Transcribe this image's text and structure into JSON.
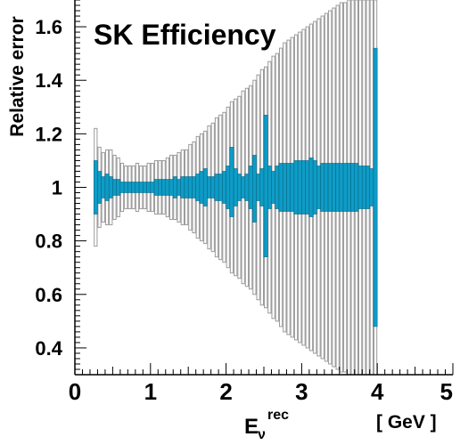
{
  "chart_data": {
    "type": "bar",
    "title": "SK Efficiency",
    "ylabel": "Relative error",
    "xlabel_main": "E",
    "xlabel_sub": "ν",
    "xlabel_sup": "rec",
    "xunit": "[ GeV ]",
    "xlim": [
      0,
      5
    ],
    "ylim": [
      0.3,
      1.7
    ],
    "x_ticks": [
      0,
      1,
      2,
      3,
      4,
      5
    ],
    "x_tick_labels": [
      "0",
      "1",
      "2",
      "3",
      "4",
      "5"
    ],
    "y_ticks": [
      0.4,
      0.6,
      0.8,
      1.0,
      1.2,
      1.4,
      1.6
    ],
    "y_tick_labels": [
      "0.4",
      "0.6",
      "0.8",
      "1",
      "1.2",
      "1.4",
      "1.6"
    ],
    "bin_width": 0.05,
    "x_start": 0.25,
    "colors": {
      "filled": "#0e9cc6",
      "filled_edge": "#08607e",
      "outline": "#9a9a9a"
    },
    "series": [
      {
        "name": "",
        "style": "outline",
        "lower": [
          0.78,
          0.85,
          0.87,
          0.86,
          0.86,
          0.88,
          0.89,
          0.91,
          0.92,
          0.92,
          0.92,
          0.91,
          0.92,
          0.92,
          0.91,
          0.91,
          0.9,
          0.9,
          0.9,
          0.89,
          0.88,
          0.88,
          0.87,
          0.86,
          0.86,
          0.84,
          0.83,
          0.81,
          0.8,
          0.79,
          0.77,
          0.76,
          0.74,
          0.73,
          0.72,
          0.7,
          0.68,
          0.67,
          0.66,
          0.64,
          0.63,
          0.62,
          0.6,
          0.58,
          0.56,
          0.55,
          0.53,
          0.51,
          0.5,
          0.48,
          0.46,
          0.45,
          0.44,
          0.43,
          0.42,
          0.41,
          0.4,
          0.39,
          0.38,
          0.37,
          0.36,
          0.35,
          0.34,
          0.33,
          0.32,
          0.31,
          0.31,
          0.3,
          0.3,
          0.3,
          0.3,
          0.3,
          0.3,
          0.3,
          0.3
        ],
        "upper": [
          1.22,
          1.15,
          1.13,
          1.14,
          1.14,
          1.12,
          1.11,
          1.09,
          1.08,
          1.08,
          1.08,
          1.09,
          1.08,
          1.08,
          1.09,
          1.09,
          1.1,
          1.1,
          1.1,
          1.11,
          1.12,
          1.12,
          1.13,
          1.14,
          1.14,
          1.16,
          1.17,
          1.19,
          1.2,
          1.21,
          1.23,
          1.24,
          1.26,
          1.27,
          1.28,
          1.3,
          1.32,
          1.33,
          1.34,
          1.36,
          1.37,
          1.38,
          1.4,
          1.42,
          1.44,
          1.45,
          1.47,
          1.49,
          1.5,
          1.52,
          1.54,
          1.55,
          1.56,
          1.57,
          1.58,
          1.59,
          1.6,
          1.61,
          1.62,
          1.63,
          1.64,
          1.65,
          1.66,
          1.67,
          1.68,
          1.69,
          1.69,
          1.7,
          1.7,
          1.7,
          1.7,
          1.7,
          1.7,
          1.7,
          1.7
        ]
      },
      {
        "name": "",
        "style": "filled",
        "lower": [
          0.9,
          0.94,
          0.96,
          0.95,
          0.96,
          0.97,
          0.97,
          0.98,
          0.98,
          0.98,
          0.98,
          0.98,
          0.98,
          0.98,
          0.98,
          0.98,
          0.97,
          0.97,
          0.97,
          0.97,
          0.97,
          0.96,
          0.97,
          0.96,
          0.96,
          0.96,
          0.96,
          0.95,
          0.94,
          0.93,
          0.96,
          0.96,
          0.95,
          0.95,
          0.94,
          0.92,
          0.89,
          0.93,
          0.95,
          0.96,
          0.95,
          0.92,
          0.87,
          0.95,
          0.93,
          0.74,
          0.92,
          0.94,
          0.92,
          0.91,
          0.91,
          0.91,
          0.91,
          0.9,
          0.9,
          0.9,
          0.9,
          0.89,
          0.9,
          0.92,
          0.91,
          0.91,
          0.91,
          0.91,
          0.91,
          0.91,
          0.91,
          0.91,
          0.91,
          0.91,
          0.92,
          0.92,
          0.92,
          0.93,
          0.48
        ],
        "upper": [
          1.1,
          1.06,
          1.04,
          1.05,
          1.04,
          1.03,
          1.03,
          1.02,
          1.02,
          1.02,
          1.02,
          1.02,
          1.02,
          1.02,
          1.02,
          1.02,
          1.03,
          1.03,
          1.03,
          1.03,
          1.03,
          1.04,
          1.03,
          1.04,
          1.04,
          1.04,
          1.04,
          1.05,
          1.06,
          1.07,
          1.04,
          1.04,
          1.05,
          1.05,
          1.06,
          1.08,
          1.15,
          1.07,
          1.05,
          1.04,
          1.05,
          1.08,
          1.12,
          1.05,
          1.07,
          1.27,
          1.08,
          1.06,
          1.08,
          1.09,
          1.09,
          1.09,
          1.09,
          1.1,
          1.1,
          1.1,
          1.1,
          1.11,
          1.1,
          1.08,
          1.09,
          1.09,
          1.09,
          1.09,
          1.09,
          1.09,
          1.09,
          1.09,
          1.09,
          1.09,
          1.08,
          1.08,
          1.08,
          1.07,
          1.52
        ]
      }
    ]
  }
}
